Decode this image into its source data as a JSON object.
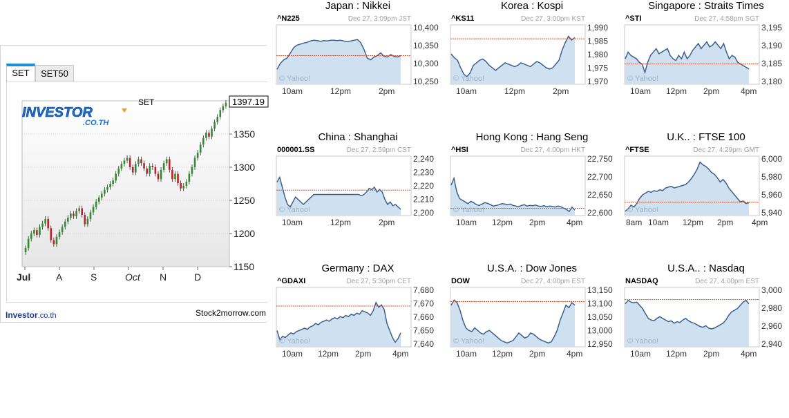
{
  "set_widget": {
    "tabs": [
      "SET",
      "SET50"
    ],
    "logo_text": "INVESTOR",
    "logo_sub": ".CO.TH",
    "index_label": "SET",
    "last_value": "1397.19",
    "footer_brand": "Investor",
    "footer_domain": ".co.th",
    "footer_right": "Stock2morrow.com",
    "accent_color": "#1a8fd8"
  },
  "chart_data": [
    {
      "type": "candlestick",
      "title": "SET",
      "x_ticks": [
        "Jul",
        "A",
        "S",
        "Oct",
        "N",
        "D"
      ],
      "y_ticks": [
        1150,
        1200,
        1250,
        1300,
        1350
      ],
      "ylim": [
        1150,
        1400
      ],
      "last_value": 1397.19,
      "closes": [
        1178,
        1192,
        1200,
        1205,
        1198,
        1210,
        1215,
        1222,
        1208,
        1190,
        1184,
        1195,
        1202,
        1210,
        1218,
        1224,
        1230,
        1226,
        1234,
        1238,
        1228,
        1214,
        1222,
        1232,
        1240,
        1248,
        1254,
        1260,
        1266,
        1270,
        1275,
        1280,
        1290,
        1298,
        1305,
        1310,
        1314,
        1300,
        1292,
        1305,
        1312,
        1306,
        1298,
        1290,
        1302,
        1300,
        1290,
        1282,
        1296,
        1306,
        1312,
        1296,
        1282,
        1290,
        1276,
        1268,
        1272,
        1278,
        1290,
        1300,
        1314,
        1322,
        1334,
        1344,
        1352,
        1346,
        1358,
        1368,
        1376,
        1386,
        1392,
        1397.19
      ],
      "grid": true
    },
    {
      "type": "line",
      "region": "Japan",
      "index": "Nikkei",
      "ticker": "^N225",
      "stamp": "Dec 27, 3:09pm JST",
      "x_ticks": [
        "10am",
        "12pm",
        "2pm"
      ],
      "y_ticks": [
        "10,400",
        "10,350",
        "10,300",
        "10,250"
      ],
      "ylim": [
        10240,
        10410
      ],
      "prev_close": 10322,
      "values": [
        10283,
        10300,
        10310,
        10315,
        10330,
        10345,
        10352,
        10355,
        10358,
        10360,
        10364,
        10366,
        10365,
        10363,
        10365,
        10364,
        10366,
        10366,
        10365,
        10366,
        10364,
        10362,
        10364,
        10366,
        10368,
        10360,
        10340,
        10315,
        10310,
        10318,
        10322,
        10330,
        10320,
        10318,
        10325,
        10320,
        10318,
        10322
      ]
    },
    {
      "type": "line",
      "region": "Korea",
      "index": "Kospi",
      "ticker": "^KS11",
      "stamp": "Dec 27, 3:00pm KST",
      "x_ticks": [
        "10am",
        "12pm",
        "2pm"
      ],
      "y_ticks": [
        "1,990",
        "1,985",
        "1,980",
        "1,975",
        "1,970"
      ],
      "ylim": [
        1968.5,
        1992
      ],
      "prev_close": 1986.5,
      "values": [
        1980.5,
        1979,
        1978,
        1975,
        1972.5,
        1971.5,
        1973,
        1976,
        1977,
        1978,
        1978.5,
        1977.5,
        1976,
        1975,
        1974,
        1975,
        1976,
        1977,
        1976.5,
        1976,
        1975.5,
        1976,
        1977,
        1976.5,
        1976,
        1975.5,
        1976.5,
        1977.5,
        1977,
        1976,
        1975,
        1974.5,
        1975,
        1976.5,
        1978,
        1982,
        1985,
        1987.5,
        1986,
        1987
      ]
    },
    {
      "type": "line",
      "region": "Singapore",
      "index": "Straits Times",
      "ticker": "^STI",
      "stamp": "Dec 27, 4:58pm SGT",
      "x_ticks": [
        "10am",
        "12pm",
        "2pm",
        "4pm"
      ],
      "y_ticks": [
        "3,195",
        "3,190",
        "3,185",
        "3,180"
      ],
      "ylim": [
        3178.5,
        3196
      ],
      "prev_close": 3184.5,
      "values": [
        3186,
        3188,
        3187,
        3186.5,
        3186,
        3185,
        3184.5,
        3182,
        3185,
        3187,
        3188,
        3189,
        3187.5,
        3188,
        3188.5,
        3189,
        3187,
        3186,
        3185.5,
        3187,
        3186,
        3188,
        3186,
        3187,
        3188.5,
        3189.5,
        3190.5,
        3189,
        3190,
        3191,
        3189.5,
        3190,
        3191,
        3190,
        3189,
        3190.5,
        3188,
        3186,
        3187,
        3186.5,
        3185,
        3184.5,
        3184,
        3183.5,
        3183
      ]
    },
    {
      "type": "line",
      "region": "China",
      "index": "Shanghai",
      "ticker": "000001.SS",
      "stamp": "Dec 27, 2:59pm CST",
      "x_ticks": [
        "10am",
        "12pm",
        "2pm"
      ],
      "y_ticks": [
        "2,240",
        "2,230",
        "2,220",
        "2,210",
        "2,200"
      ],
      "ylim": [
        2197,
        2245
      ],
      "prev_close": 2217.5,
      "values": [
        2224,
        2228,
        2220,
        2212,
        2206,
        2204,
        2208,
        2212,
        2210,
        2208,
        2206,
        2208,
        2210,
        2212,
        2214,
        2214,
        2214,
        2214,
        2214,
        2214,
        2214,
        2214,
        2214,
        2214,
        2214,
        2214,
        2214,
        2214,
        2214,
        2214,
        2214,
        2214,
        2213,
        2214,
        2216,
        2219,
        2218,
        2220,
        2216,
        2218,
        2216,
        2210,
        2206,
        2208,
        2205,
        2206,
        2204,
        2202
      ]
    },
    {
      "type": "line",
      "region": "Hong Kong",
      "index": "Hang Seng",
      "ticker": "^HSI",
      "stamp": "Dec 27, 4:00pm HKT",
      "x_ticks": [
        "10am",
        "12pm",
        "2pm",
        "4pm"
      ],
      "y_ticks": [
        "22,750",
        "22,700",
        "22,650",
        "22,600"
      ],
      "ylim": [
        22590,
        22765
      ],
      "prev_close": 22611,
      "values": [
        22680,
        22700,
        22660,
        22640,
        22635,
        22630,
        22625,
        22632,
        22628,
        22622,
        22620,
        22624,
        22628,
        22626,
        22622,
        22618,
        22620,
        22622,
        22625,
        22624,
        22622,
        22624,
        22620,
        22618,
        22616,
        22620,
        22622,
        22618,
        22620,
        22619,
        22621,
        22618,
        22617,
        22619,
        22616,
        22618,
        22617,
        22615,
        22618,
        22616,
        22612,
        22608,
        22602,
        22615,
        22606
      ]
    },
    {
      "type": "line",
      "region": "U.K..",
      "index": "FTSE 100",
      "ticker": "^FTSE",
      "stamp": "Dec 27, 4:29pm GMT",
      "x_ticks": [
        "8am",
        "10am",
        "12pm",
        "2pm",
        "4pm"
      ],
      "y_ticks": [
        "6,000",
        "5,980",
        "5,960",
        "5,940"
      ],
      "ylim": [
        5936,
        6005
      ],
      "prev_close": 5951.5,
      "values": [
        5941,
        5944,
        5948,
        5946,
        5950,
        5956,
        5960,
        5962,
        5964,
        5963,
        5965,
        5964,
        5966,
        5965,
        5968,
        5969,
        5970,
        5968,
        5969,
        5970,
        5971,
        5972,
        5975,
        5979,
        5984,
        5990,
        5998,
        5995,
        5993,
        5990,
        5986,
        5984,
        5980,
        5975,
        5978,
        5974,
        5968,
        5964,
        5960,
        5956,
        5952,
        5953,
        5950,
        5951
      ]
    },
    {
      "type": "line",
      "region": "Germany",
      "index": "DAX",
      "ticker": "^GDAXI",
      "stamp": "Dec 27, 5:30pm CET",
      "x_ticks": [
        "10am",
        "12pm",
        "2pm",
        "4pm"
      ],
      "y_ticks": [
        "7,680",
        "7,670",
        "7,660",
        "7,650",
        "7,640"
      ],
      "ylim": [
        7636,
        7687
      ],
      "prev_close": 7671,
      "values": [
        7650,
        7642,
        7645,
        7644,
        7646,
        7648,
        7647,
        7649,
        7650,
        7651,
        7652,
        7651,
        7653,
        7654,
        7656,
        7655,
        7657,
        7658,
        7659,
        7658,
        7660,
        7661,
        7660,
        7662,
        7661,
        7663,
        7662,
        7664,
        7663,
        7665,
        7664,
        7667,
        7666,
        7665,
        7663,
        7667,
        7674,
        7670,
        7672,
        7668,
        7656,
        7650,
        7644,
        7640,
        7643,
        7648
      ]
    },
    {
      "type": "line",
      "region": "U.S.A.",
      "index": "Dow Jones",
      "ticker": "DOW",
      "stamp": "Dec 27, 4:00pm EST",
      "x_ticks": [
        "10am",
        "12pm",
        "2pm",
        "4pm"
      ],
      "y_ticks": [
        "13,150",
        "13,100",
        "13,050",
        "13,000",
        "12,950"
      ],
      "ylim": [
        12935,
        13170
      ],
      "prev_close": 13114,
      "values": [
        13100,
        13120,
        13110,
        13080,
        13040,
        13010,
        13000,
        12995,
        13010,
        13000,
        12990,
        12985,
        12995,
        13000,
        12990,
        12980,
        12970,
        12960,
        12955,
        12950,
        12955,
        12960,
        12975,
        12990,
        12980,
        12970,
        12975,
        12990,
        12985,
        12975,
        12965,
        12960,
        12955,
        12950,
        12955,
        12975,
        13000,
        13040,
        13070,
        13100,
        13090,
        13110,
        13100
      ]
    },
    {
      "type": "line",
      "region": "U.S.A..",
      "index": "Nasdaq",
      "ticker": "NASDAQ",
      "stamp": "Dec 27, 4:00pm EST",
      "x_ticks": [
        "10am",
        "12pm",
        "2pm",
        "4pm"
      ],
      "y_ticks": [
        "3,000",
        "2,980",
        "2,960",
        "2,940"
      ],
      "ylim": [
        2933,
        3006
      ],
      "prev_close": 2991,
      "values": [
        2986,
        2990,
        2988,
        2987,
        2988,
        2984,
        2980,
        2974,
        2968,
        2966,
        2965,
        2968,
        2970,
        2968,
        2966,
        2964,
        2965,
        2962,
        2964,
        2963,
        2966,
        2968,
        2965,
        2963,
        2962,
        2960,
        2958,
        2957,
        2959,
        2956,
        2955,
        2956,
        2958,
        2960,
        2962,
        2966,
        2972,
        2976,
        2978,
        2980,
        2984,
        2988,
        2990,
        2986
      ]
    }
  ],
  "mini_common": {
    "watermark": "© Yahoo!",
    "fill_color": "#cfe1f0",
    "line_color": "#3d5f8c",
    "prev_close_color": "#e0502a"
  }
}
